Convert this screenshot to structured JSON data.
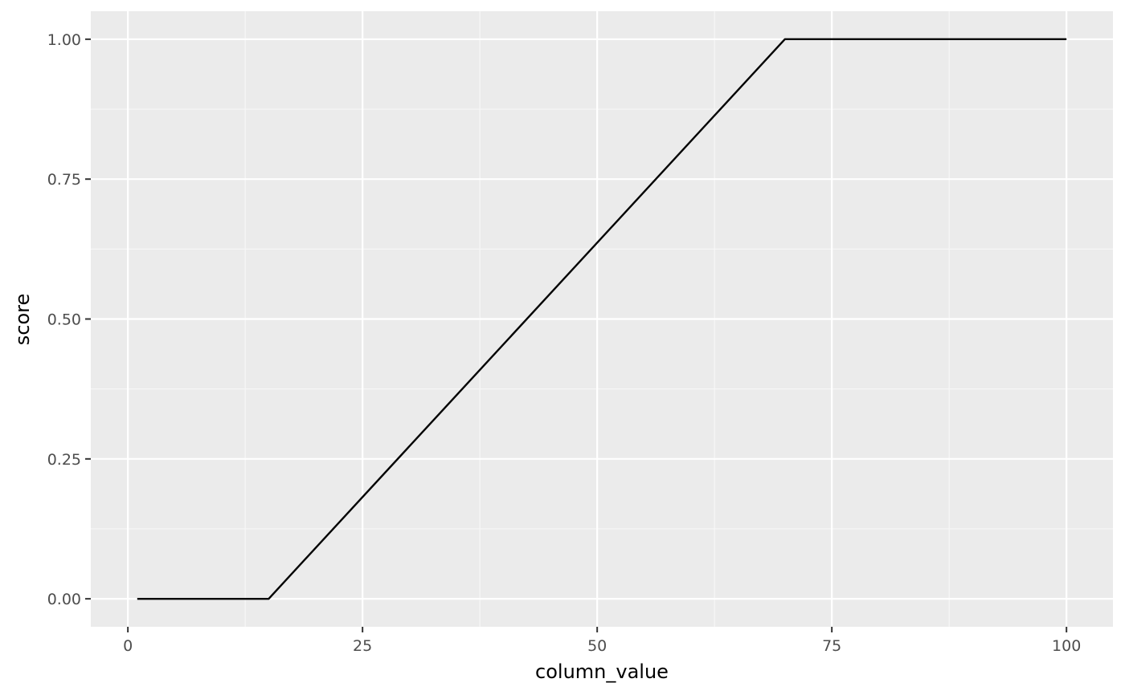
{
  "chart_data": {
    "type": "line",
    "title": "",
    "xlabel": "column_value",
    "ylabel": "score",
    "xlim": [
      -3.95,
      104.95
    ],
    "ylim": [
      -0.05,
      1.05
    ],
    "x_ticks": [
      0,
      25,
      50,
      75,
      100
    ],
    "x_tick_labels": [
      "0",
      "25",
      "50",
      "75",
      "100"
    ],
    "y_ticks": [
      0,
      0.25,
      0.5,
      0.75,
      1
    ],
    "y_tick_labels": [
      "0.00",
      "0.25",
      "0.50",
      "0.75",
      "1.00"
    ],
    "grid": true,
    "legend": "none",
    "series": [
      {
        "x": [
          1,
          15,
          70,
          100
        ],
        "y": [
          0,
          0,
          1,
          1
        ]
      }
    ],
    "colors": {
      "panel_background": "#ebebeb",
      "grid_major": "#ffffff",
      "grid_minor": "#f7f7f7",
      "line": "#000000",
      "tick": "#333333"
    }
  }
}
